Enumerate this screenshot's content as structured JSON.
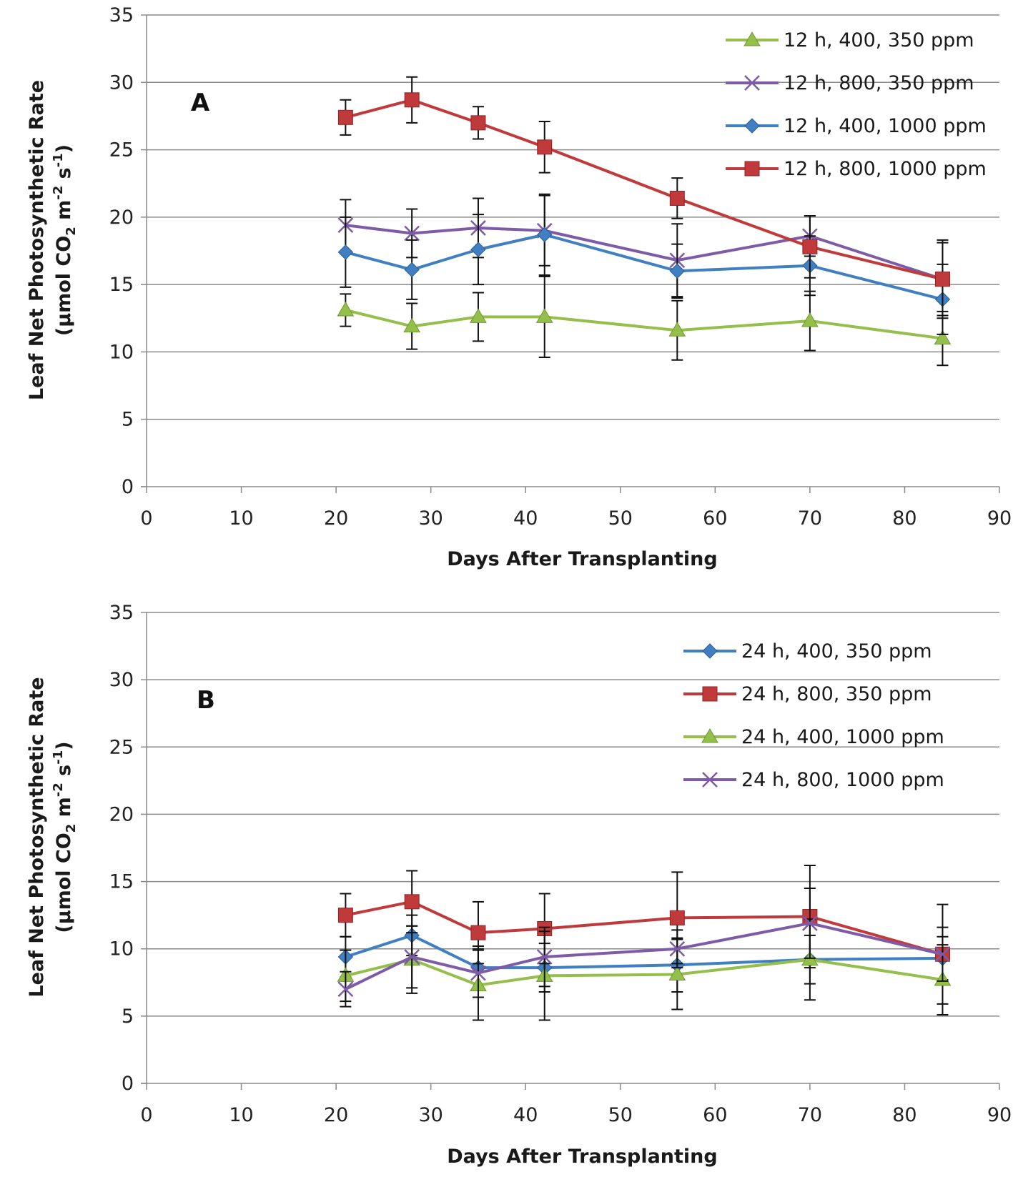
{
  "chart_data": [
    {
      "type": "line",
      "panel_label": "A",
      "title": "",
      "xlabel": "Days After Transplanting",
      "ylabel_lines": [
        "Leaf Net Photosynthetic Rate",
        "(µmol CO",
        "2",
        " m",
        "-2",
        " s",
        "-1",
        ")"
      ],
      "xlim": [
        0,
        90
      ],
      "ylim": [
        0,
        35
      ],
      "x_ticks": [
        "0",
        "10",
        "20",
        "30",
        "40",
        "50",
        "60",
        "70",
        "80",
        "90"
      ],
      "y_ticks": [
        "0",
        "5",
        "10",
        "15",
        "20",
        "25",
        "30",
        "35"
      ],
      "grid": true,
      "legend_position": "top-right",
      "x": [
        21,
        28,
        35,
        42,
        56,
        70,
        84
      ],
      "series": [
        {
          "name": "12 h, 400, 350 ppm",
          "color": "#93bf4a",
          "marker": "triangle",
          "values": [
            13.1,
            11.9,
            12.6,
            12.6,
            11.6,
            12.3,
            11.0
          ],
          "errors": [
            1.2,
            1.7,
            1.8,
            3.0,
            2.2,
            2.2,
            2.0
          ]
        },
        {
          "name": "12 h, 800, 350 ppm",
          "color": "#7d5ba6",
          "marker": "x",
          "values": [
            19.4,
            18.8,
            19.2,
            19.0,
            16.8,
            18.6,
            15.4
          ],
          "errors": [
            1.9,
            1.8,
            2.2,
            2.6,
            2.7,
            1.5,
            2.9
          ]
        },
        {
          "name": "12 h, 400, 1000 ppm",
          "color": "#3f7fc2",
          "marker": "diamond",
          "values": [
            17.4,
            16.1,
            17.6,
            18.7,
            16.0,
            16.4,
            13.9
          ],
          "errors": [
            2.6,
            2.2,
            2.6,
            3.0,
            2.0,
            2.2,
            2.6
          ]
        },
        {
          "name": "12 h, 800, 1000 ppm",
          "color": "#c0393b",
          "marker": "square",
          "values": [
            27.4,
            28.7,
            27.0,
            25.2,
            21.4,
            17.8,
            15.4
          ],
          "errors": [
            1.3,
            1.7,
            1.2,
            1.9,
            1.5,
            2.3,
            2.7
          ]
        }
      ]
    },
    {
      "type": "line",
      "panel_label": "B",
      "title": "",
      "xlabel": "Days After Transplanting",
      "ylabel_lines": [
        "Leaf Net Photosynthetic Rate",
        "(µmol CO",
        "2",
        " m",
        "-2",
        " s",
        "-1",
        ")"
      ],
      "xlim": [
        0,
        90
      ],
      "ylim": [
        0,
        35
      ],
      "x_ticks": [
        "0",
        "10",
        "20",
        "30",
        "40",
        "50",
        "60",
        "70",
        "80",
        "90"
      ],
      "y_ticks": [
        "0",
        "5",
        "10",
        "15",
        "20",
        "25",
        "30",
        "35"
      ],
      "grid": true,
      "legend_position": "top-right",
      "x": [
        21,
        28,
        35,
        42,
        56,
        70,
        84
      ],
      "series": [
        {
          "name": "24 h, 400, 350 ppm",
          "color": "#3f7fc2",
          "marker": "diamond",
          "values": [
            9.4,
            11.0,
            8.6,
            8.6,
            8.8,
            9.2,
            9.3
          ],
          "errors": [
            1.5,
            1.5,
            1.6,
            1.8,
            2.0,
            1.8,
            1.6
          ]
        },
        {
          "name": "24 h, 800, 350 ppm",
          "color": "#c0393b",
          "marker": "square",
          "values": [
            12.5,
            13.5,
            11.2,
            11.5,
            12.3,
            12.4,
            9.6
          ],
          "errors": [
            1.6,
            2.3,
            2.3,
            2.6,
            3.4,
            3.8,
            3.7
          ]
        },
        {
          "name": "24 h, 400, 1000 ppm",
          "color": "#93bf4a",
          "marker": "triangle",
          "values": [
            8.0,
            9.2,
            7.3,
            8.0,
            8.1,
            9.2,
            7.7
          ],
          "errors": [
            1.9,
            2.5,
            2.6,
            3.3,
            2.6,
            3.0,
            2.6
          ]
        },
        {
          "name": "24 h, 800, 1000 ppm",
          "color": "#7d5ba6",
          "marker": "x",
          "values": [
            7.0,
            9.4,
            8.2,
            9.4,
            10.0,
            11.9,
            9.6
          ],
          "errors": [
            1.3,
            2.3,
            1.8,
            2.2,
            1.4,
            2.6,
            2.0
          ]
        }
      ]
    }
  ]
}
